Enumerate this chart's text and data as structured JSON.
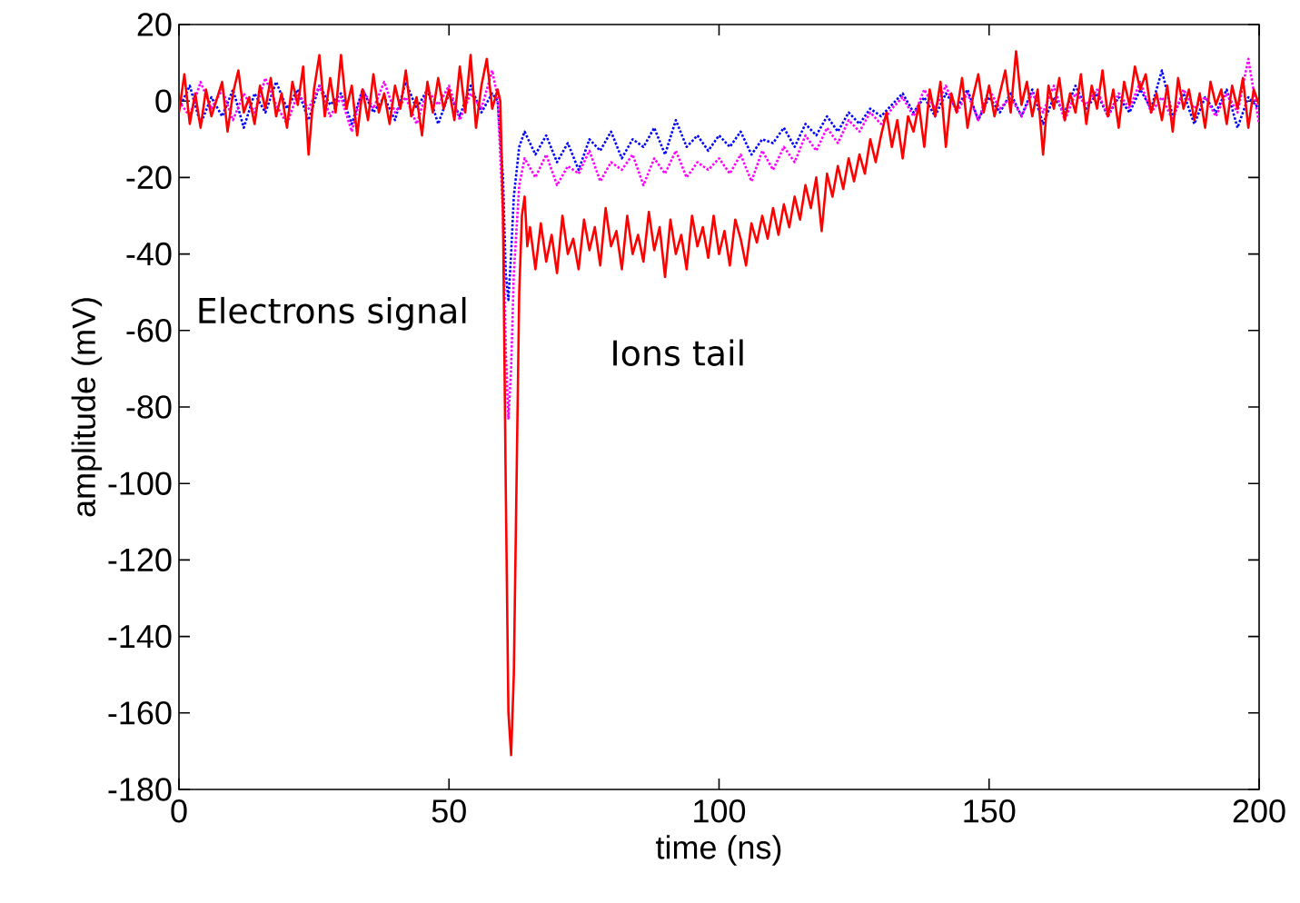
{
  "chart_data": {
    "type": "line",
    "xlabel": "time (ns)",
    "ylabel": "amplitude (mV)",
    "xlim": [
      0,
      200
    ],
    "ylim": [
      -180,
      20
    ],
    "xticks": [
      0,
      50,
      100,
      150,
      200
    ],
    "yticks": [
      -180,
      -160,
      -140,
      -120,
      -100,
      -80,
      -60,
      -40,
      -20,
      0,
      20
    ],
    "grid": false,
    "marker": "none",
    "annotations": [
      "Electrons signal",
      "Ions tail"
    ],
    "series": [
      {
        "color": "#0000ff",
        "line_style": "dotted",
        "x": [
          0,
          2,
          4,
          6,
          8,
          10,
          12,
          14,
          16,
          18,
          20,
          22,
          24,
          26,
          28,
          30,
          32,
          34,
          36,
          38,
          40,
          42,
          44,
          46,
          48,
          50,
          52,
          54,
          56,
          58,
          59,
          60,
          60.5,
          61,
          61.5,
          62,
          63,
          64,
          66,
          68,
          70,
          72,
          74,
          76,
          78,
          80,
          82,
          84,
          86,
          88,
          90,
          92,
          94,
          96,
          98,
          100,
          102,
          104,
          106,
          108,
          110,
          112,
          114,
          116,
          118,
          120,
          122,
          124,
          126,
          128,
          130,
          132,
          134,
          136,
          138,
          140,
          142,
          144,
          146,
          148,
          150,
          152,
          154,
          156,
          158,
          160,
          162,
          164,
          166,
          168,
          170,
          172,
          174,
          176,
          178,
          180,
          182,
          184,
          186,
          188,
          190,
          192,
          194,
          196,
          198,
          200
        ],
        "values": [
          -2,
          4,
          -6,
          1,
          -4,
          3,
          -7,
          2,
          -3,
          5,
          -2,
          3,
          -5,
          4,
          -1,
          2,
          -6,
          3,
          -3,
          1,
          -5,
          5,
          -2,
          3,
          -6,
          2,
          -4,
          4,
          -3,
          2,
          0,
          -20,
          -45,
          -52,
          -40,
          -25,
          -12,
          -8,
          -14,
          -9,
          -16,
          -11,
          -18,
          -10,
          -13,
          -8,
          -15,
          -10,
          -12,
          -7,
          -14,
          -5,
          -12,
          -9,
          -13,
          -9,
          -12,
          -8,
          -14,
          -10,
          -11,
          -7,
          -12,
          -6,
          -9,
          -4,
          -8,
          -3,
          -6,
          -2,
          -4,
          -1,
          2,
          -3,
          1,
          -4,
          2,
          -2,
          3,
          -5,
          1,
          -3,
          2,
          -4,
          3,
          -6,
          1,
          -3,
          4,
          -2,
          2,
          -4,
          1,
          -3,
          3,
          -2,
          8,
          -4,
          2,
          -6,
          1,
          -3,
          3,
          -7,
          1,
          -2
        ]
      },
      {
        "color": "#ff00ff",
        "line_style": "dotted",
        "x": [
          0,
          2,
          4,
          6,
          8,
          10,
          12,
          14,
          16,
          18,
          20,
          22,
          24,
          26,
          28,
          30,
          32,
          34,
          36,
          38,
          40,
          42,
          44,
          46,
          48,
          50,
          52,
          54,
          56,
          58,
          59,
          60,
          60.5,
          61,
          61.5,
          62,
          63,
          64,
          66,
          68,
          70,
          72,
          74,
          76,
          78,
          80,
          82,
          84,
          86,
          88,
          90,
          92,
          94,
          96,
          98,
          100,
          102,
          104,
          106,
          108,
          110,
          112,
          114,
          116,
          118,
          120,
          122,
          124,
          126,
          128,
          130,
          132,
          134,
          136,
          138,
          140,
          142,
          144,
          146,
          148,
          150,
          152,
          154,
          156,
          158,
          160,
          162,
          164,
          166,
          168,
          170,
          172,
          174,
          176,
          178,
          180,
          182,
          184,
          186,
          188,
          190,
          192,
          194,
          196,
          198,
          200
        ],
        "values": [
          0,
          -4,
          5,
          -2,
          3,
          -5,
          2,
          -3,
          6,
          -1,
          -6,
          2,
          -2,
          4,
          -4,
          1,
          -8,
          3,
          -2,
          5,
          -3,
          1,
          -6,
          3,
          -1,
          4,
          -5,
          2,
          -2,
          8,
          1,
          -30,
          -65,
          -83,
          -70,
          -45,
          -22,
          -15,
          -20,
          -14,
          -22,
          -17,
          -19,
          -13,
          -21,
          -16,
          -18,
          -14,
          -22,
          -15,
          -19,
          -13,
          -20,
          -16,
          -18,
          -15,
          -19,
          -14,
          -21,
          -13,
          -18,
          -12,
          -16,
          -9,
          -13,
          -7,
          -11,
          -5,
          -8,
          -3,
          -6,
          -2,
          1,
          -4,
          3,
          -2,
          4,
          -3,
          2,
          -5,
          3,
          -2,
          1,
          -4,
          2,
          -3,
          4,
          -5,
          2,
          -1,
          3,
          -4,
          2,
          -2,
          5,
          -3,
          1,
          -5,
          3,
          -2,
          1,
          -4,
          2,
          -3,
          11,
          -6
        ]
      },
      {
        "color": "#ff0000",
        "line_style": "solid",
        "x": [
          0,
          1,
          2,
          3,
          4,
          5,
          6,
          8,
          9,
          10,
          11,
          12,
          13,
          14,
          15,
          16,
          17,
          18,
          19,
          20,
          21,
          22,
          23,
          24,
          25,
          26,
          27,
          28,
          29,
          30,
          31,
          32,
          33,
          34,
          35,
          36,
          37,
          38,
          39,
          40,
          41,
          42,
          43,
          44,
          45,
          46,
          47,
          48,
          49,
          50,
          51,
          52,
          53,
          54,
          55,
          56,
          57,
          58,
          59,
          59.5,
          60,
          60.5,
          61,
          61.5,
          62,
          62.5,
          63,
          63.5,
          64,
          64.5,
          65,
          66,
          67,
          68,
          69,
          70,
          71,
          72,
          73,
          74,
          75,
          76,
          77,
          78,
          79,
          80,
          81,
          82,
          83,
          84,
          85,
          86,
          87,
          88,
          89,
          90,
          91,
          92,
          93,
          94,
          95,
          96,
          97,
          98,
          99,
          100,
          101,
          102,
          103,
          104,
          105,
          106,
          107,
          108,
          109,
          110,
          111,
          112,
          113,
          114,
          115,
          116,
          117,
          118,
          119,
          120,
          121,
          122,
          123,
          124,
          125,
          126,
          127,
          128,
          129,
          130,
          131,
          132,
          133,
          134,
          135,
          136,
          137,
          138,
          139,
          140,
          141,
          142,
          143,
          144,
          145,
          146,
          147,
          148,
          149,
          150,
          151,
          152,
          153,
          154,
          155,
          156,
          157,
          158,
          159,
          160,
          161,
          162,
          163,
          164,
          165,
          166,
          167,
          168,
          169,
          170,
          171,
          172,
          173,
          174,
          175,
          176,
          177,
          178,
          179,
          180,
          181,
          182,
          183,
          184,
          185,
          186,
          187,
          188,
          189,
          190,
          191,
          192,
          193,
          194,
          195,
          196,
          197,
          198,
          199,
          200
        ],
        "values": [
          -3,
          7,
          -6,
          2,
          -7,
          3,
          -4,
          5,
          -8,
          2,
          8,
          -3,
          1,
          -6,
          4,
          -2,
          6,
          -4,
          2,
          -7,
          5,
          -1,
          9,
          -14,
          3,
          12,
          -4,
          6,
          -3,
          12,
          -2,
          4,
          -9,
          3,
          -5,
          7,
          -3,
          2,
          -6,
          4,
          -2,
          8,
          -4,
          1,
          -9,
          5,
          -3,
          6,
          -2,
          3,
          -5,
          9,
          -3,
          12,
          -7,
          4,
          11,
          -2,
          3,
          0,
          -30,
          -100,
          -160,
          -171,
          -150,
          -100,
          -50,
          -30,
          -25,
          -38,
          -33,
          -44,
          -32,
          -42,
          -35,
          -45,
          -30,
          -40,
          -36,
          -44,
          -31,
          -39,
          -33,
          -43,
          -28,
          -38,
          -34,
          -44,
          -30,
          -40,
          -35,
          -42,
          -29,
          -39,
          -33,
          -46,
          -31,
          -40,
          -35,
          -44,
          -30,
          -38,
          -33,
          -41,
          -30,
          -40,
          -34,
          -43,
          -31,
          -36,
          -43,
          -32,
          -37,
          -30,
          -36,
          -28,
          -35,
          -27,
          -33,
          -25,
          -31,
          -22,
          -28,
          -20,
          -34,
          -19,
          -25,
          -17,
          -23,
          -15,
          -21,
          -14,
          -19,
          -10,
          -16,
          -9,
          -3,
          -12,
          -5,
          -15,
          -4,
          -8,
          -1,
          -12,
          3,
          -4,
          5,
          -12,
          2,
          -3,
          6,
          -7,
          1,
          7,
          -3,
          4,
          -4,
          2,
          8,
          -3,
          13,
          -1,
          5,
          -4,
          3,
          -14,
          4,
          -2,
          6,
          -5,
          2,
          -3,
          7,
          -6,
          4,
          -2,
          8,
          -4,
          3,
          -7,
          5,
          -1,
          9,
          3,
          7,
          -3,
          2,
          -5,
          4,
          -8,
          6,
          -2,
          3,
          -5,
          2,
          -7,
          5,
          -1,
          3,
          -6,
          4,
          -2,
          6,
          -7,
          3,
          -1
        ]
      }
    ]
  }
}
